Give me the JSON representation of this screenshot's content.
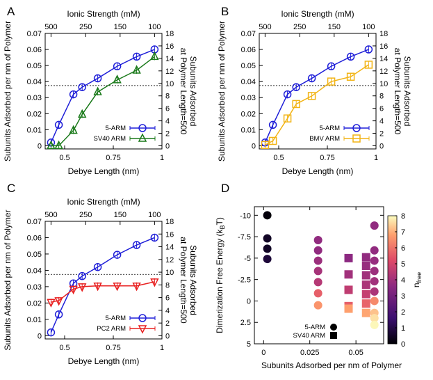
{
  "figure": {
    "panel_labels": [
      "A",
      "B",
      "C",
      "D"
    ]
  },
  "chart_data": [
    {
      "panel": "A",
      "type": "line",
      "xlabel": "Debye Length (nm)",
      "ylabel": "Subunits Adsorbed per nm of Polymer",
      "x2label": "Ionic Strength (mM)",
      "y2label": [
        "Subunits Adsorbed",
        "at Polymer Length=500"
      ],
      "xlim": [
        0.4,
        1.0
      ],
      "ylim": [
        -0.002,
        0.07
      ],
      "y2lim": [
        -0.5,
        18
      ],
      "x_ticks": [
        0.5,
        0.75,
        1
      ],
      "x_tick_labels": [
        "0.5",
        "0.75",
        "1"
      ],
      "y_ticks": [
        0,
        0.01,
        0.02,
        0.03,
        0.04,
        0.05,
        0.06,
        0.07
      ],
      "y_tick_labels": [
        "0",
        "0.01",
        "0.02",
        "0.03",
        "0.04",
        "0.05",
        "0.06",
        "0.07"
      ],
      "y2_ticks": [
        0,
        2,
        4,
        6,
        8,
        10,
        12,
        14,
        16,
        18
      ],
      "y2_tick_labels": [
        "0",
        "2",
        "4",
        "6",
        "8",
        "10",
        "12",
        "14",
        "16",
        "18"
      ],
      "x2_tick_labels": [
        "500",
        "250",
        "150",
        "100"
      ],
      "x2_tick_positions": [
        0.43,
        0.608,
        0.785,
        0.962
      ],
      "reference_line_y": 0.0375,
      "legend_position": "bottom-right",
      "series": [
        {
          "name": "5-ARM",
          "color": "#1f1fd8",
          "marker": "circle",
          "x": [
            0.43,
            0.47,
            0.545,
            0.59,
            0.67,
            0.77,
            0.87,
            0.962
          ],
          "y": [
            0.002,
            0.013,
            0.032,
            0.0365,
            0.042,
            0.0495,
            0.0555,
            0.06
          ]
        },
        {
          "name": "SV40 ARM",
          "color": "#1b7a1b",
          "marker": "triangle-up",
          "x": [
            0.43,
            0.47,
            0.545,
            0.59,
            0.67,
            0.77,
            0.87,
            0.962
          ],
          "y": [
            0.0,
            0.0,
            0.0095,
            0.0195,
            0.0335,
            0.041,
            0.047,
            0.0555
          ]
        }
      ]
    },
    {
      "panel": "B",
      "type": "line",
      "xlabel": "Debye Length (nm)",
      "ylabel": "Subunits Adsorbed per nm of Polymer",
      "x2label": "Ionic Strength (mM)",
      "y2label": [
        "Subunits Adsorbed",
        "at Polymer Length=500"
      ],
      "xlim": [
        0.4,
        1.0
      ],
      "ylim": [
        -0.002,
        0.07
      ],
      "y2lim": [
        -0.5,
        18
      ],
      "x_ticks": [
        0.5,
        0.75,
        1
      ],
      "x_tick_labels": [
        "0.5",
        "0.75",
        "1"
      ],
      "y_ticks": [
        0,
        0.01,
        0.02,
        0.03,
        0.04,
        0.05,
        0.06,
        0.07
      ],
      "y_tick_labels": [
        "0",
        "0.01",
        "0.02",
        "0.03",
        "0.04",
        "0.05",
        "0.06",
        "0.07"
      ],
      "y2_ticks": [
        0,
        2,
        4,
        6,
        8,
        10,
        12,
        14,
        16,
        18
      ],
      "y2_tick_labels": [
        "0",
        "2",
        "4",
        "6",
        "8",
        "10",
        "12",
        "14",
        "16",
        "18"
      ],
      "x2_tick_labels": [
        "500",
        "250",
        "150",
        "100"
      ],
      "x2_tick_positions": [
        0.43,
        0.608,
        0.785,
        0.962
      ],
      "reference_line_y": 0.0375,
      "legend_position": "bottom-right",
      "series": [
        {
          "name": "5-ARM",
          "color": "#1f1fd8",
          "marker": "circle",
          "x": [
            0.43,
            0.47,
            0.545,
            0.59,
            0.67,
            0.77,
            0.87,
            0.962
          ],
          "y": [
            0.002,
            0.013,
            0.032,
            0.0365,
            0.042,
            0.0495,
            0.0555,
            0.06
          ]
        },
        {
          "name": "BMV ARM",
          "color": "#f2b416",
          "marker": "square",
          "x": [
            0.43,
            0.47,
            0.545,
            0.59,
            0.67,
            0.77,
            0.87,
            0.962
          ],
          "y": [
            0.0005,
            0.003,
            0.017,
            0.026,
            0.031,
            0.04,
            0.043,
            0.0505
          ]
        }
      ]
    },
    {
      "panel": "C",
      "type": "line",
      "xlabel": "Debye Length (nm)",
      "ylabel": "Subunits Adsorbed per nm of Polymer",
      "x2label": "Ionic Strength (mM)",
      "y2label": [
        "Subunits Adsorbed",
        "at Polymer Length=500"
      ],
      "xlim": [
        0.4,
        1.0
      ],
      "ylim": [
        -0.002,
        0.07
      ],
      "y2lim": [
        -0.5,
        18
      ],
      "x_ticks": [
        0.5,
        0.75,
        1
      ],
      "x_tick_labels": [
        "0.5",
        "0.75",
        "1"
      ],
      "y_ticks": [
        0,
        0.01,
        0.02,
        0.03,
        0.04,
        0.05,
        0.06,
        0.07
      ],
      "y_tick_labels": [
        "0",
        "0.01",
        "0.02",
        "0.03",
        "0.04",
        "0.05",
        "0.06",
        "0.07"
      ],
      "y2_ticks": [
        0,
        2,
        4,
        6,
        8,
        10,
        12,
        14,
        16,
        18
      ],
      "y2_tick_labels": [
        "0",
        "2",
        "4",
        "6",
        "8",
        "10",
        "12",
        "14",
        "16",
        "18"
      ],
      "x2_tick_labels": [
        "500",
        "250",
        "150",
        "100"
      ],
      "x2_tick_positions": [
        0.43,
        0.608,
        0.785,
        0.962
      ],
      "reference_line_y": 0.0375,
      "legend_position": "bottom-right",
      "series": [
        {
          "name": "5-ARM",
          "color": "#1f1fd8",
          "marker": "circle",
          "x": [
            0.43,
            0.47,
            0.545,
            0.59,
            0.67,
            0.77,
            0.87,
            0.962
          ],
          "y": [
            0.002,
            0.013,
            0.032,
            0.0365,
            0.042,
            0.0495,
            0.0555,
            0.06
          ]
        },
        {
          "name": "PC2 ARM",
          "color": "#e82020",
          "marker": "triangle-down",
          "x": [
            0.43,
            0.47,
            0.545,
            0.59,
            0.67,
            0.77,
            0.87,
            0.962
          ],
          "y": [
            0.0205,
            0.0215,
            0.0285,
            0.03,
            0.0305,
            0.0305,
            0.0305,
            0.033
          ]
        }
      ]
    },
    {
      "panel": "D",
      "type": "scatter",
      "xlabel": "Subunits Adsorbed per nm of Polymer",
      "ylabel": "Dimerization Free Energy (k",
      "ylabel_sub": "B",
      "ylabel_end": "T)",
      "xlim": [
        -0.005,
        0.065
      ],
      "ylim": [
        5,
        -11
      ],
      "y_inverted": true,
      "x_ticks": [
        0,
        0.025,
        0.05
      ],
      "x_tick_labels": [
        "0",
        "0.025",
        "0.05"
      ],
      "y_ticks": [
        -10,
        -7.5,
        -5,
        -2.5,
        0,
        2.5,
        5
      ],
      "y_tick_labels": [
        "-10",
        "-7.5",
        "-5",
        "-2.5",
        "0",
        "2.5",
        "5"
      ],
      "colorbar": {
        "label": "n",
        "label_sub": "free",
        "range": [
          0,
          8
        ],
        "ticks": [
          "0",
          "1",
          "2",
          "3",
          "4",
          "5",
          "6",
          "7",
          "8"
        ],
        "stops": [
          "#000004",
          "#3b0f70",
          "#8c2981",
          "#de4968",
          "#fe9f6d",
          "#fcfdbf"
        ]
      },
      "legend_position": "bottom-left",
      "series": [
        {
          "name": "5-ARM",
          "marker": "circle",
          "points": [
            {
              "x": 0.002,
              "y": -10,
              "c": 0.1
            },
            {
              "x": 0.002,
              "y": -7.3,
              "c": 0.5
            },
            {
              "x": 0.002,
              "y": -6.1,
              "c": 0.5
            },
            {
              "x": 0.002,
              "y": -4.9,
              "c": 0.8
            },
            {
              "x": 0.0295,
              "y": -7.1,
              "c": 3.3
            },
            {
              "x": 0.0295,
              "y": -5.9,
              "c": 3.3
            },
            {
              "x": 0.0295,
              "y": -4.7,
              "c": 3.5
            },
            {
              "x": 0.0295,
              "y": -3.5,
              "c": 3.7
            },
            {
              "x": 0.0295,
              "y": -2.2,
              "c": 4.0
            },
            {
              "x": 0.0295,
              "y": -0.9,
              "c": 5.2
            },
            {
              "x": 0.0295,
              "y": 0.5,
              "c": 6.2
            },
            {
              "x": 0.06,
              "y": -8.8,
              "c": 3.3
            },
            {
              "x": 0.06,
              "y": -5.9,
              "c": 3.3
            },
            {
              "x": 0.06,
              "y": -4.7,
              "c": 3.4
            },
            {
              "x": 0.06,
              "y": -3.5,
              "c": 3.5
            },
            {
              "x": 0.06,
              "y": -2.3,
              "c": 3.6
            },
            {
              "x": 0.06,
              "y": -1.1,
              "c": 3.8
            },
            {
              "x": 0.06,
              "y": 0.0,
              "c": 6.0
            },
            {
              "x": 0.06,
              "y": 1.4,
              "c": 7.0
            },
            {
              "x": 0.06,
              "y": 2.0,
              "c": 7.5
            },
            {
              "x": 0.06,
              "y": 2.8,
              "c": 7.9
            }
          ]
        },
        {
          "name": "SV40 ARM",
          "marker": "square",
          "points": [
            {
              "x": 0.046,
              "y": -5.0,
              "c": 3.2
            },
            {
              "x": 0.046,
              "y": -3.1,
              "c": 3.6
            },
            {
              "x": 0.046,
              "y": -1.3,
              "c": 4.2
            },
            {
              "x": 0.046,
              "y": 0.6,
              "c": 5.2
            },
            {
              "x": 0.046,
              "y": 0.9,
              "c": 6.4
            },
            {
              "x": 0.0555,
              "y": -5.1,
              "c": 3.3
            },
            {
              "x": 0.0555,
              "y": -4.1,
              "c": 3.4
            },
            {
              "x": 0.0555,
              "y": -3.0,
              "c": 3.6
            },
            {
              "x": 0.0555,
              "y": -1.9,
              "c": 3.8
            },
            {
              "x": 0.0555,
              "y": -0.8,
              "c": 4.3
            },
            {
              "x": 0.0555,
              "y": 0.3,
              "c": 5.3
            },
            {
              "x": 0.0555,
              "y": 1.4,
              "c": 6.5
            }
          ]
        }
      ]
    }
  ]
}
